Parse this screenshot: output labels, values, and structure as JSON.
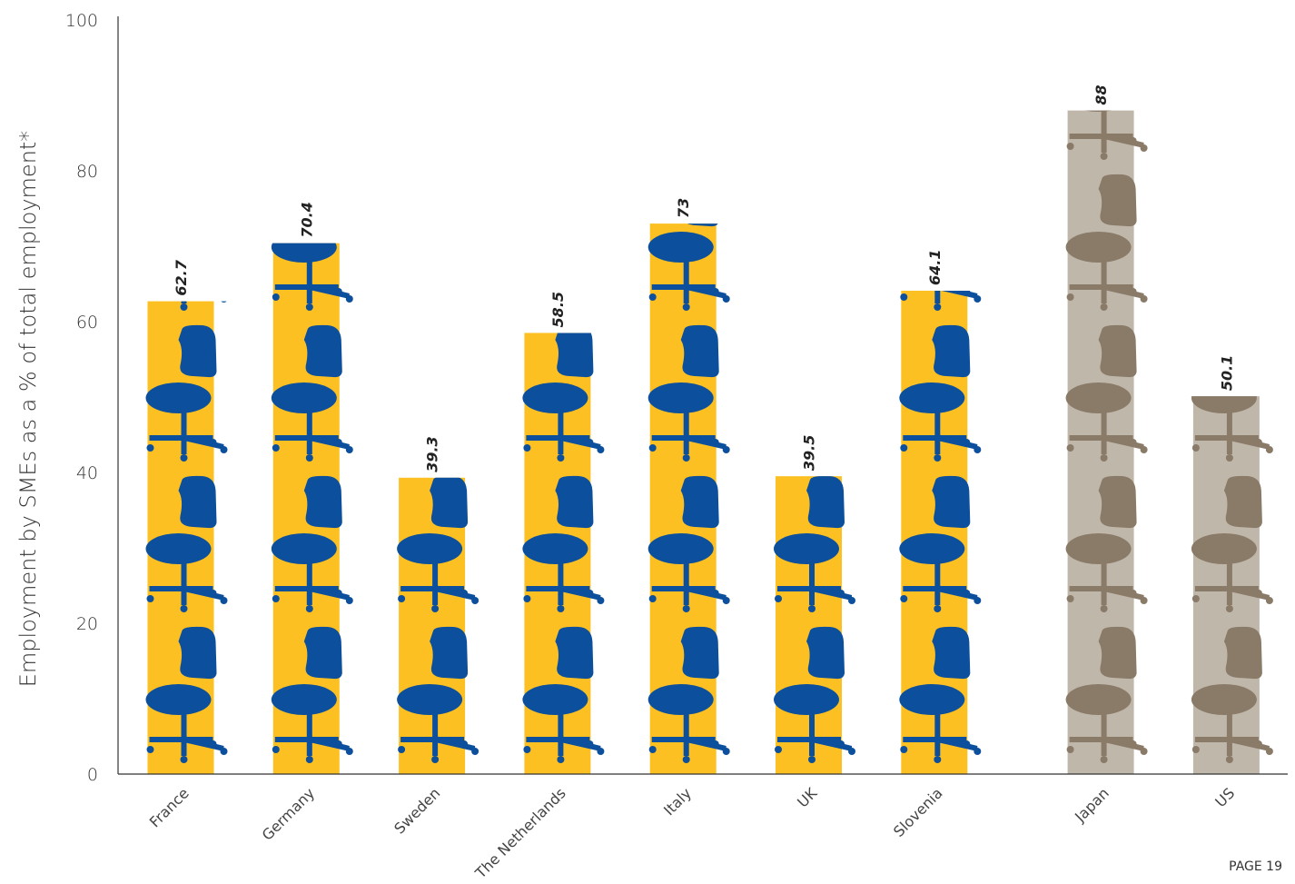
{
  "chart_data": {
    "type": "bar",
    "y_label": "Employment by SMEs as a % of total employment*",
    "categories": [
      "France",
      "Germany",
      "Sweden",
      "The Netherlands",
      "Italy",
      "UK",
      "Slovenia",
      "Japan",
      "US"
    ],
    "values": [
      62.7,
      70.4,
      39.3,
      58.5,
      73,
      39.5,
      64.1,
      88,
      50.1
    ],
    "bar_colors": [
      "#fcc023",
      "#fcc023",
      "#fcc023",
      "#fcc023",
      "#fcc023",
      "#fcc023",
      "#fcc023",
      "#c0b7ab",
      "#c0b7ab"
    ],
    "icon_colors": [
      "#0c4f9c",
      "#0c4f9c",
      "#0c4f9c",
      "#0c4f9c",
      "#0c4f9c",
      "#0c4f9c",
      "#0c4f9c",
      "#8a7a68",
      "#8a7a68"
    ],
    "ylim": [
      0,
      100
    ],
    "yticks": [
      0,
      20,
      40,
      60,
      80,
      100
    ],
    "grid": false,
    "footer": "PAGE 19"
  }
}
